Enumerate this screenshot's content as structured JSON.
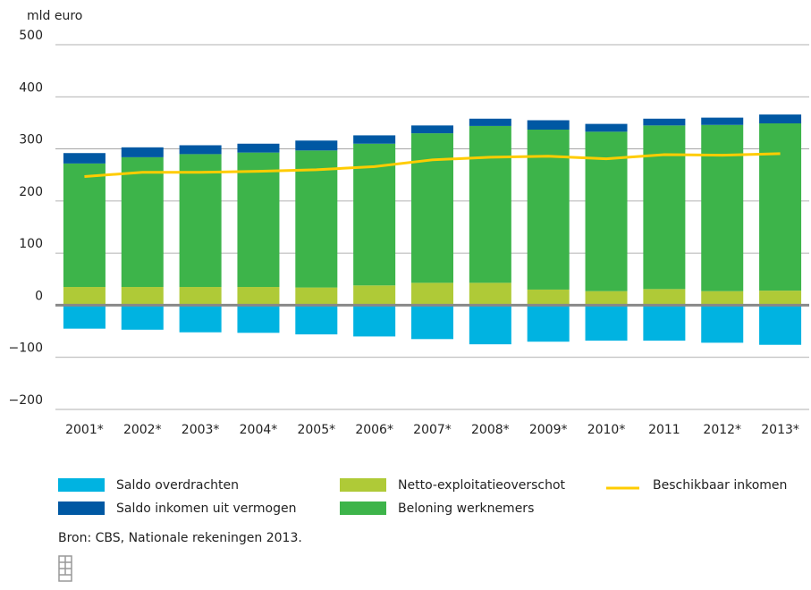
{
  "chart_data": {
    "type": "bar",
    "stacked": true,
    "y_label": "mld euro",
    "categories": [
      "2001*",
      "2002*",
      "2003*",
      "2004*",
      "2005*",
      "2006*",
      "2007*",
      "2008*",
      "2009*",
      "2010*",
      "2011",
      "2012*",
      "2013*"
    ],
    "series": [
      {
        "name": "Netto-exploitatieoverschot",
        "color": "#afca37",
        "values": [
          35,
          35,
          35,
          35,
          34,
          38,
          43,
          43,
          30,
          27,
          31,
          27,
          28
        ]
      },
      {
        "name": "Beloning werknemers",
        "color": "#3db44a",
        "values": [
          237,
          249,
          255,
          258,
          263,
          272,
          287,
          301,
          307,
          306,
          314,
          319,
          321
        ]
      },
      {
        "name": "Saldo inkomen uit vermogen",
        "color": "#0058a3",
        "values": [
          20,
          19,
          17,
          17,
          19,
          16,
          15,
          14,
          18,
          15,
          13,
          14,
          17
        ]
      },
      {
        "name": "Saldo overdrachten",
        "color": "#00b3e1",
        "values": [
          -45,
          -47,
          -52,
          -53,
          -56,
          -60,
          -65,
          -75,
          -70,
          -68,
          -68,
          -72,
          -76
        ]
      },
      {
        "name": "Beschikbaar inkomen",
        "type": "line",
        "color": "#ffcc00",
        "values": [
          247,
          255,
          255,
          257,
          260,
          266,
          279,
          284,
          286,
          281,
          289,
          288,
          291
        ]
      }
    ],
    "ylim": [
      -200,
      500
    ],
    "yticks": [
      {
        "value": -200,
        "label": "−200"
      },
      {
        "value": -100,
        "label": "−100"
      },
      0,
      100,
      200,
      300,
      400,
      500
    ],
    "grid": true,
    "source": "Bron: CBS, Nationale rekeningen 2013."
  }
}
